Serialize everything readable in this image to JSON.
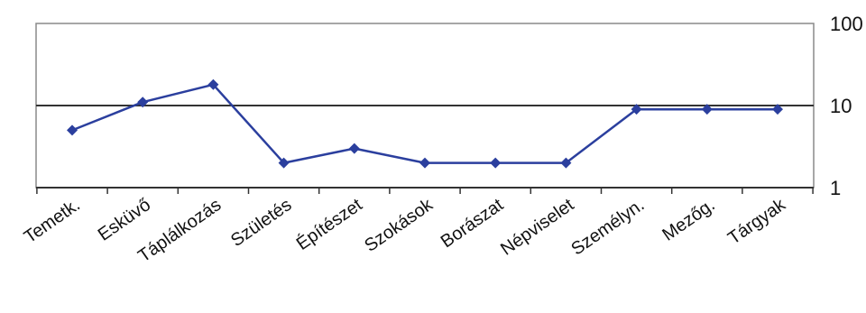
{
  "chart_data": {
    "type": "line",
    "title": "",
    "xlabel": "",
    "ylabel": "",
    "y_scale": "log",
    "ylim": [
      1,
      100
    ],
    "y_axis_position": "right",
    "y_ticks": [
      "1",
      "10",
      "100"
    ],
    "grid": "horizontal line at 10",
    "legend": "none",
    "categories": [
      "Temetk.",
      "Esküvő",
      "Táplálkozás",
      "Születés",
      "Építészet",
      "Szokások",
      "Borászat",
      "Népviselet",
      "Személyn.",
      "Mezőg.",
      "Tárgyak"
    ],
    "series": [
      {
        "values": [
          5,
          11,
          18,
          2,
          3,
          2,
          2,
          2,
          9,
          9,
          9
        ],
        "color": "#2b3f9e"
      }
    ],
    "colors": {
      "line": "#2b3f9e",
      "axis": "#333333",
      "plot_border": "#8a8a8a"
    }
  }
}
